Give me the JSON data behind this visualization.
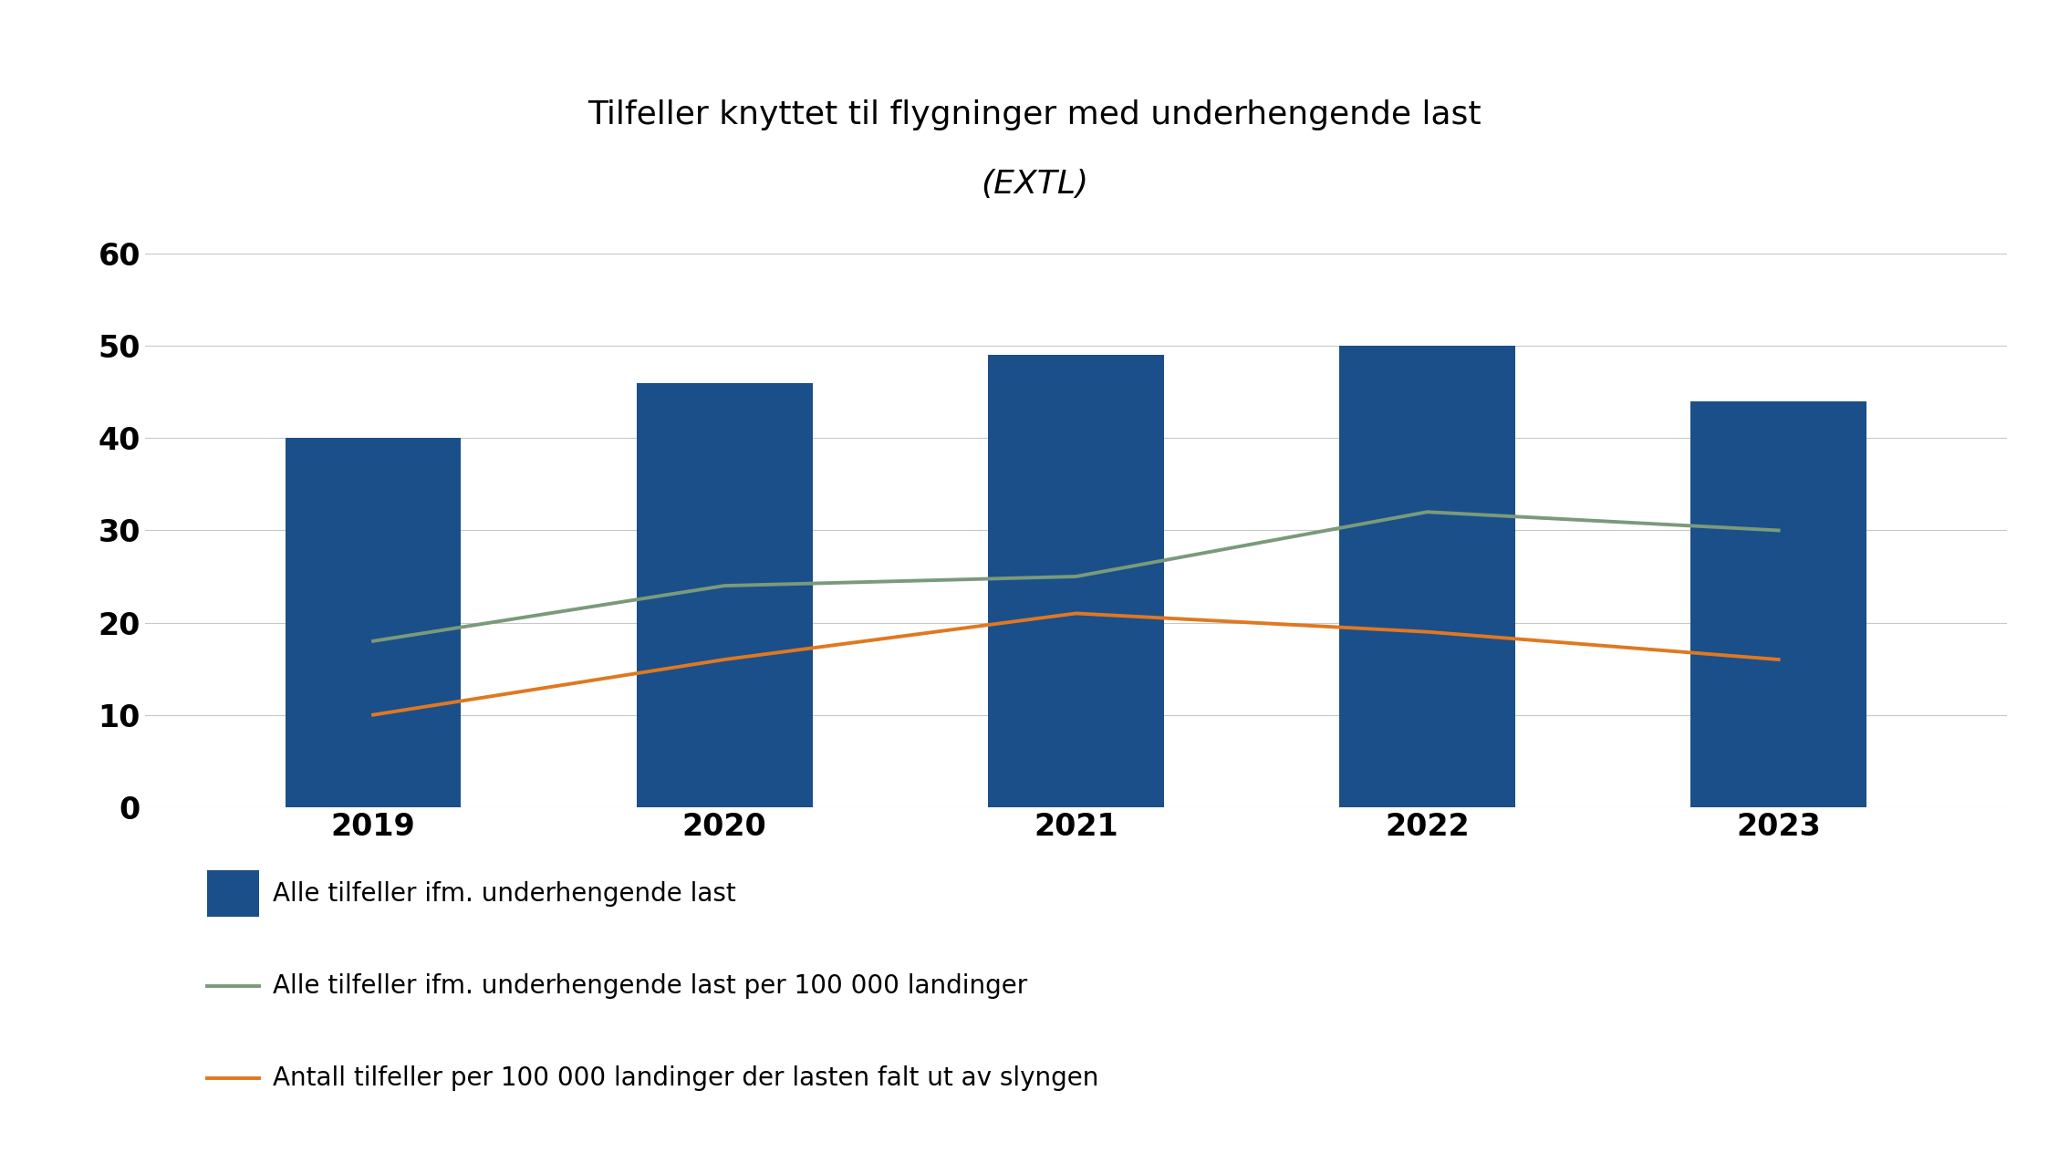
{
  "title_line1": "Tilfeller knyttet til flygninger med underhengende last",
  "title_line2": "(EXTL)",
  "years": [
    2019,
    2020,
    2021,
    2022,
    2023
  ],
  "bar_values": [
    40,
    46,
    49,
    50,
    44
  ],
  "bar_color": "#1a4f8a",
  "gray_line_values": [
    18,
    24,
    25,
    32,
    30
  ],
  "gray_line_color": "#7a9a7a",
  "orange_line_values": [
    10,
    16,
    21,
    19,
    16
  ],
  "orange_line_color": "#e07820",
  "ylim": [
    0,
    65
  ],
  "yticks": [
    0,
    10,
    20,
    30,
    40,
    50,
    60
  ],
  "grid_color": "#c8c8c8",
  "background_color": "#ffffff",
  "legend_bar_label": "Alle tilfeller ifm. underhengende last",
  "legend_gray_label": "Alle tilfeller ifm. underhengende last per 100 000 landinger",
  "legend_orange_label": "Antall tilfeller per 100 000 landinger der lasten falt ut av slyngen",
  "bar_width": 0.5,
  "title_fontsize": 26,
  "subtitle_fontsize": 26,
  "axis_tick_fontsize": 24,
  "legend_fontsize": 20
}
